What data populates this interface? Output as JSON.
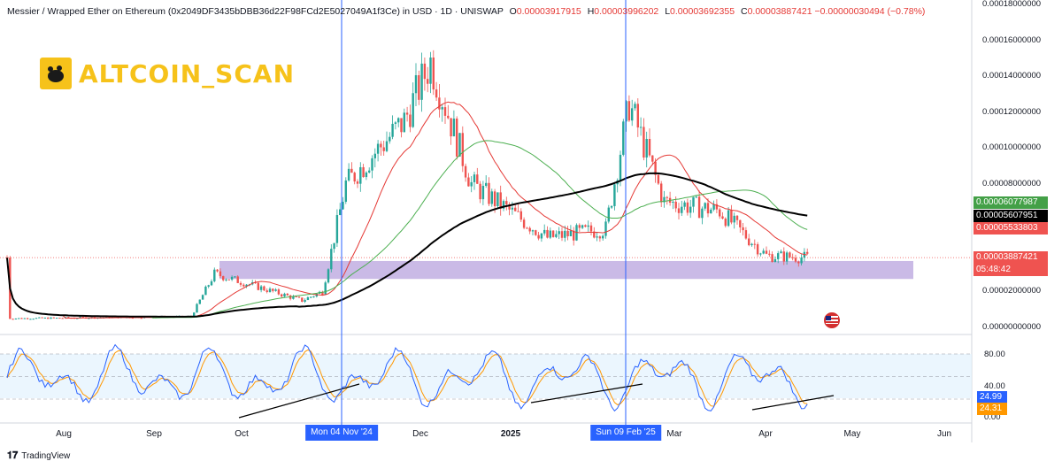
{
  "header": {
    "title": "Messier / Wrapped Ether on Ethereum (0x2049DF3435bDBB36d22F98FCd2E5027049A1f3Ce) in USD · 1D · UNISWAP",
    "open_label": "O",
    "open": "0.00003917915",
    "high_label": "H",
    "high": "0.00003996202",
    "low_label": "L",
    "low": "0.00003692355",
    "close_label": "C",
    "close": "0.00003887421",
    "change": "−0.00000030494 (−0.78%)"
  },
  "logo": {
    "text": "ALTCOIN_SCAN"
  },
  "price_axis": {
    "ticks": [
      "0.00018000000",
      "0.00016000000",
      "0.00014000000",
      "0.00012000000",
      "0.00010000000",
      "0.00008000000",
      "0.00002000000",
      "0.00000000000"
    ]
  },
  "price_tags": {
    "green": "0.00006077987",
    "black": "0.00005607951",
    "red": "0.00005533803",
    "current": "0.00003887421",
    "countdown": "05:48:42"
  },
  "oscillator": {
    "levels": [
      "80.00",
      "40.00",
      "0.00"
    ],
    "k_value": "24.99",
    "d_value": "24.31"
  },
  "time_axis": {
    "labels": [
      "Aug",
      "Sep",
      "Oct",
      "Dec",
      "2025",
      "Mar",
      "Apr",
      "May",
      "Jun"
    ],
    "badges": [
      "Mon 04 Nov '24",
      "Sun 09 Feb '25"
    ]
  },
  "footer": {
    "brand": "TradingView"
  },
  "colors": {
    "up": "#26a69a",
    "down": "#ef5350",
    "ma_black": "#000000",
    "ma_green": "#4caf50",
    "ma_red": "#e53935",
    "zone": "#b39ddb",
    "badge": "#2962ff",
    "k_line": "#2962ff",
    "d_line": "#ff9800"
  },
  "chart_data": {
    "type": "candlestick",
    "y_range": [
      0,
      0.00018
    ],
    "key_points": [
      {
        "t": "Jul-20",
        "p": 5e-06
      },
      {
        "t": "Sep-20",
        "p": 6e-06
      },
      {
        "t": "Sep-28",
        "p": 3e-05
      },
      {
        "t": "Oct-28",
        "p": 1.5e-05
      },
      {
        "t": "Nov-04",
        "p": 2e-05
      },
      {
        "t": "Nov-12",
        "p": 8e-05
      },
      {
        "t": "Dec-02",
        "p": 0.000115
      },
      {
        "t": "Dec-11",
        "p": 0.000148
      },
      {
        "t": "Dec-25",
        "p": 8e-05
      },
      {
        "t": "Jan-20",
        "p": 5e-05
      },
      {
        "t": "Feb-09",
        "p": 5.5e-05
      },
      {
        "t": "Feb-17",
        "p": 0.000125
      },
      {
        "t": "Mar-01",
        "p": 7e-05
      },
      {
        "t": "Mar-20",
        "p": 6.5e-05
      },
      {
        "t": "Apr-05",
        "p": 4e-05
      },
      {
        "t": "Apr-19",
        "p": 3.89e-05
      }
    ],
    "support_zone": [
      2.7e-05,
      3.7e-05
    ],
    "oscillator_k_last": 24.99,
    "oscillator_d_last": 24.31
  }
}
